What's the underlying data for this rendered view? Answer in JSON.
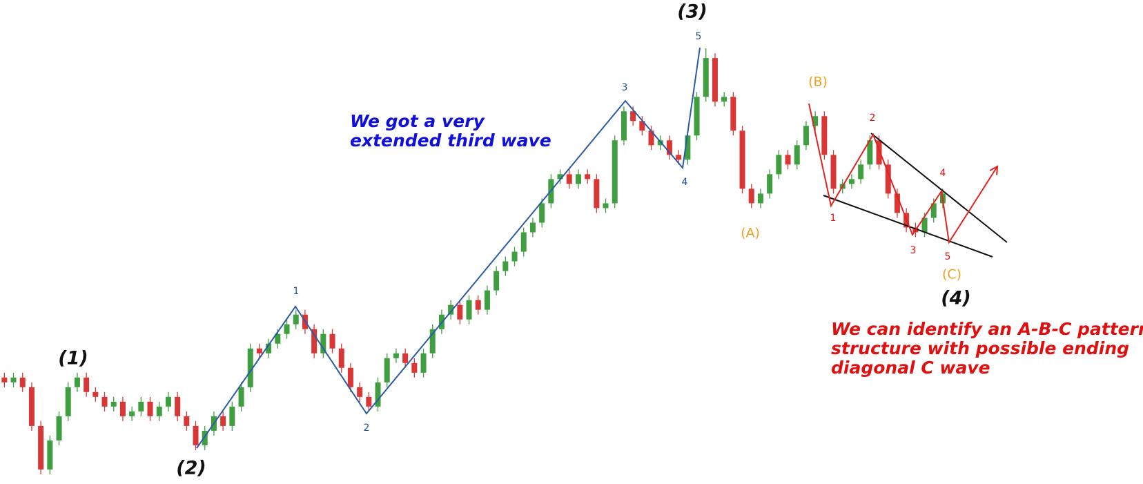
{
  "chart_data": {
    "type": "candlestick",
    "open": [
      22,
      21,
      22,
      20,
      12,
      3,
      9,
      14,
      20,
      22,
      19,
      18,
      16,
      17,
      14,
      15,
      17,
      14,
      16,
      18,
      14,
      12,
      8,
      11,
      14,
      12,
      16,
      20,
      28,
      27,
      29,
      31,
      33,
      35,
      32,
      27,
      31,
      28,
      24,
      20,
      18,
      16,
      21,
      26,
      27,
      25,
      23,
      27,
      32,
      35,
      37,
      34,
      38,
      36,
      40,
      44,
      46,
      48,
      52,
      54,
      58,
      63,
      64,
      62,
      64,
      63,
      57,
      58,
      71,
      77,
      75,
      73,
      70,
      71,
      68,
      67,
      72,
      80,
      88,
      79,
      80,
      73,
      61,
      58,
      60,
      64,
      68,
      66,
      70,
      74,
      76,
      68,
      61,
      62,
      63,
      66,
      71,
      66,
      60,
      56,
      53,
      52,
      55,
      58
    ],
    "high": [
      23,
      23,
      23,
      21,
      13,
      10,
      15,
      21,
      23,
      23,
      20,
      19,
      18,
      18,
      16,
      18,
      18,
      17,
      19,
      19,
      15,
      13,
      12,
      15,
      15,
      17,
      21,
      29,
      29,
      30,
      32,
      34,
      36,
      36,
      33,
      32,
      32,
      29,
      25,
      21,
      19,
      22,
      27,
      28,
      28,
      26,
      28,
      33,
      36,
      38,
      38,
      39,
      39,
      41,
      45,
      47,
      49,
      53,
      55,
      59,
      64,
      65,
      65,
      65,
      65,
      64,
      59,
      72,
      78,
      78,
      76,
      74,
      72,
      72,
      69,
      73,
      81,
      90,
      89,
      81,
      81,
      74,
      62,
      61,
      65,
      69,
      69,
      71,
      75,
      77,
      77,
      69,
      63,
      64,
      67,
      72,
      72,
      67,
      61,
      57,
      54,
      56,
      59,
      61
    ],
    "low": [
      20,
      20,
      19,
      11,
      2,
      2,
      8,
      13,
      19,
      18,
      17,
      15,
      15,
      13,
      13,
      14,
      13,
      13,
      15,
      13,
      11,
      7,
      7,
      10,
      11,
      11,
      15,
      19,
      26,
      26,
      28,
      30,
      32,
      31,
      26,
      26,
      27,
      23,
      19,
      17,
      15,
      15,
      20,
      25,
      24,
      22,
      22,
      26,
      31,
      34,
      33,
      33,
      35,
      35,
      39,
      43,
      45,
      47,
      51,
      53,
      57,
      62,
      61,
      61,
      62,
      56,
      56,
      57,
      70,
      74,
      72,
      69,
      69,
      67,
      66,
      66,
      71,
      79,
      78,
      78,
      72,
      60,
      57,
      57,
      59,
      63,
      65,
      65,
      69,
      73,
      67,
      60,
      60,
      61,
      62,
      65,
      65,
      59,
      55,
      52,
      51,
      51,
      54,
      57
    ],
    "close": [
      21,
      22,
      20,
      12,
      3,
      9,
      14,
      20,
      22,
      19,
      18,
      16,
      17,
      14,
      15,
      17,
      14,
      16,
      18,
      14,
      12,
      8,
      11,
      14,
      12,
      16,
      20,
      28,
      27,
      29,
      31,
      33,
      35,
      32,
      27,
      31,
      28,
      24,
      20,
      18,
      16,
      21,
      26,
      27,
      25,
      23,
      27,
      32,
      35,
      37,
      34,
      38,
      36,
      40,
      44,
      46,
      48,
      52,
      54,
      58,
      63,
      64,
      62,
      64,
      63,
      57,
      58,
      71,
      77,
      75,
      73,
      70,
      71,
      68,
      67,
      72,
      80,
      88,
      79,
      80,
      73,
      61,
      58,
      60,
      64,
      68,
      66,
      70,
      74,
      76,
      68,
      61,
      62,
      63,
      66,
      71,
      66,
      60,
      56,
      53,
      52,
      55,
      58,
      60
    ],
    "up_color": "#3f9e3f",
    "down_color": "#d93636",
    "ylim": [
      0,
      100
    ],
    "wave_labels": [
      "(1)",
      "(2)",
      "(3)",
      "(4)"
    ],
    "impulse_labels": [
      "1",
      "2",
      "3",
      "4",
      "5"
    ],
    "correction_labels": [
      "(A)",
      "(B)",
      "(C)"
    ],
    "diagonal_labels": [
      "1",
      "2",
      "3",
      "4",
      "5"
    ],
    "annotations": [
      {
        "lines": [
          "We got a very",
          "extended third wave"
        ],
        "color": "#1010d8"
      },
      {
        "lines": [
          "We can identify an A-B-C pattern",
          "structure with possible ending",
          "diagonal C wave"
        ],
        "color": "#e01010"
      }
    ]
  }
}
